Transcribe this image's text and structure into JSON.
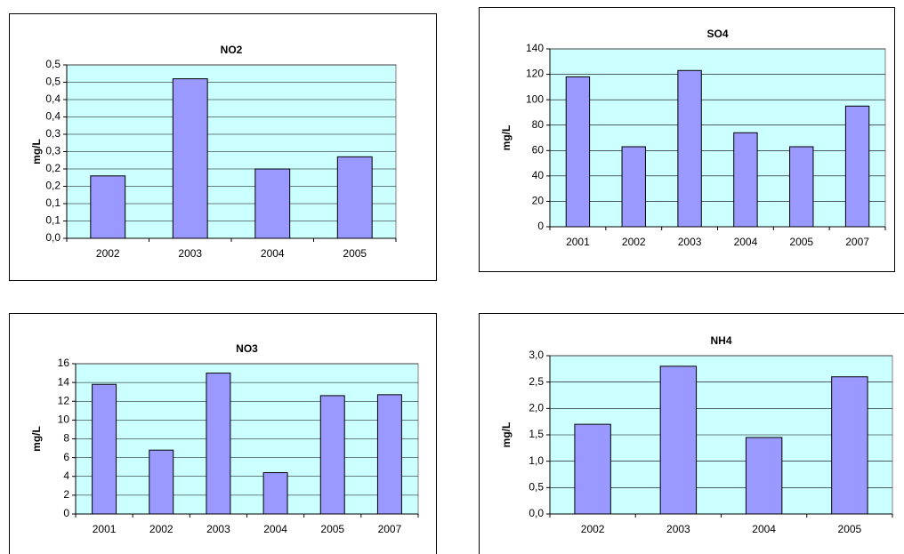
{
  "chart_data": [
    {
      "type": "bar",
      "title": "NO2",
      "y_label": "mg/L",
      "categories": [
        "2002",
        "2003",
        "2004",
        "2005"
      ],
      "values": [
        0.18,
        0.46,
        0.2,
        0.235
      ],
      "color": "#9999ff",
      "plot_background": "#ccffff",
      "grid": true,
      "ylim": [
        0,
        0.5
      ],
      "yticks": [
        {
          "value": 0,
          "label": "0,0"
        },
        {
          "value": 0.05,
          "label": "0,1"
        },
        {
          "value": 0.1,
          "label": "0,1"
        },
        {
          "value": 0.15,
          "label": "0,2"
        },
        {
          "value": 0.2,
          "label": "0,2"
        },
        {
          "value": 0.25,
          "label": "0,3"
        },
        {
          "value": 0.3,
          "label": "0,3"
        },
        {
          "value": 0.35,
          "label": "0,4"
        },
        {
          "value": 0.4,
          "label": "0,4"
        },
        {
          "value": 0.45,
          "label": "0,5"
        },
        {
          "value": 0.5,
          "label": "0,5"
        }
      ]
    },
    {
      "type": "bar",
      "title": "SO4",
      "y_label": "mg/L",
      "categories": [
        "2001",
        "2002",
        "2003",
        "2004",
        "2005",
        "2007"
      ],
      "values": [
        118,
        63,
        123,
        74,
        63,
        95
      ],
      "color": "#9999ff",
      "plot_background": "#ccffff",
      "grid": true,
      "ylim": [
        0,
        140
      ],
      "yticks": [
        0,
        20,
        40,
        60,
        80,
        100,
        120,
        140
      ]
    },
    {
      "type": "bar",
      "title": "NO3",
      "y_label": "mg/L",
      "categories": [
        "2001",
        "2002",
        "2003",
        "2004",
        "2005",
        "2007"
      ],
      "values": [
        13.8,
        6.8,
        15.0,
        4.4,
        12.6,
        12.7
      ],
      "color": "#9999ff",
      "plot_background": "#ccffff",
      "grid": true,
      "ylim": [
        0,
        16
      ],
      "yticks": [
        0,
        2,
        4,
        6,
        8,
        10,
        12,
        14,
        16
      ]
    },
    {
      "type": "bar",
      "title": "NH4",
      "y_label": "mg/L",
      "categories": [
        "2002",
        "2003",
        "2004",
        "2005"
      ],
      "values": [
        1.7,
        2.8,
        1.45,
        2.6
      ],
      "color": "#9999ff",
      "plot_background": "#ccffff",
      "grid": true,
      "ylim": [
        0,
        3
      ],
      "yticks": [
        {
          "value": 0,
          "label": "0,0"
        },
        {
          "value": 0.5,
          "label": "0,5"
        },
        {
          "value": 1,
          "label": "1,0"
        },
        {
          "value": 1.5,
          "label": "1,5"
        },
        {
          "value": 2,
          "label": "2,0"
        },
        {
          "value": 2.5,
          "label": "2,5"
        },
        {
          "value": 3,
          "label": "3,0"
        }
      ]
    }
  ]
}
